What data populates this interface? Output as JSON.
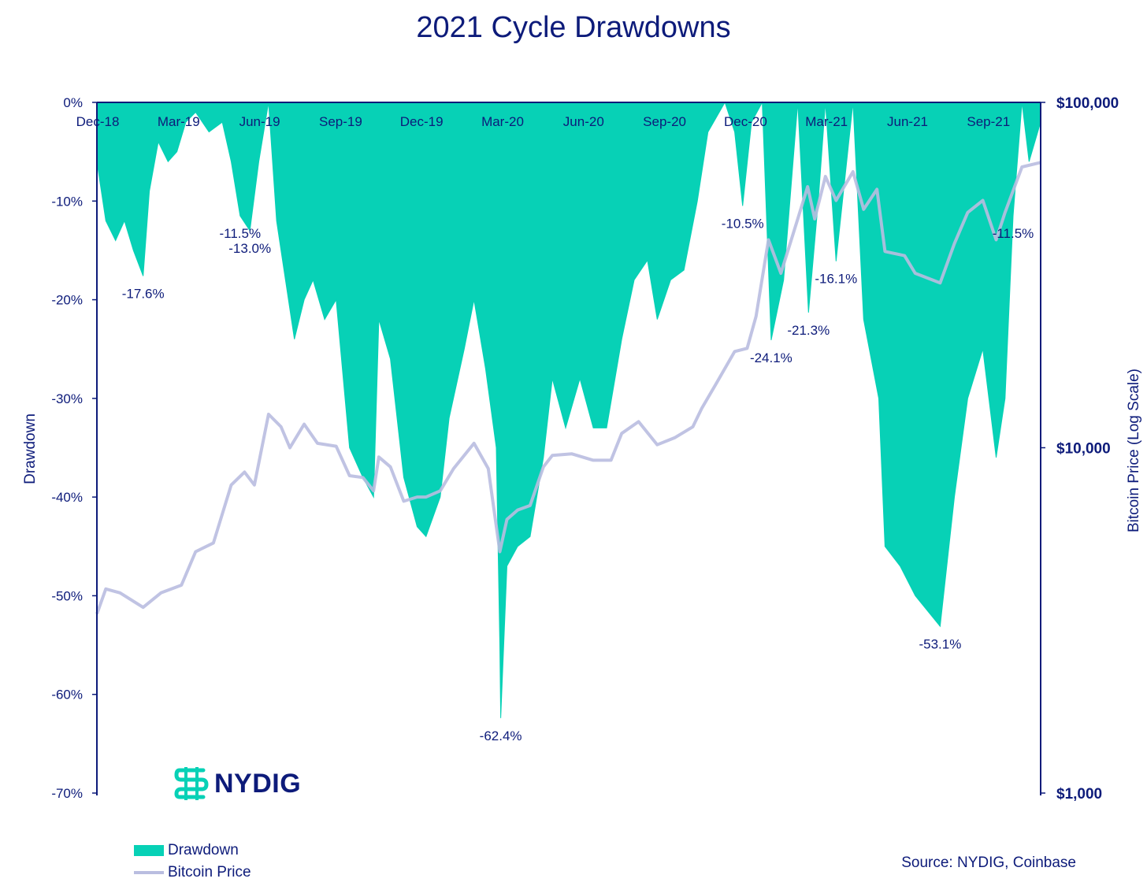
{
  "title": "2021 Cycle Drawdowns",
  "brand": {
    "logo_text": "NYDIG",
    "logo_icon": "nydig-logo-icon"
  },
  "source": "Source: NYDIG, Coinbase",
  "legend": {
    "drawdown": "Drawdown",
    "price": "Bitcoin Price"
  },
  "colors": {
    "drawdown": "#07d1b6",
    "price": "#b9bde0",
    "axis": "#0d1b7a"
  },
  "chart_data": {
    "type": "area",
    "title": "2021 Cycle Drawdowns",
    "ylabel_left": "Drawdown",
    "ylabel_right": "Bitcoin Price (Log Scale)",
    "left_axis": {
      "ylim": [
        -70,
        0
      ],
      "ticks": [
        "0%",
        "-10%",
        "-20%",
        "-30%",
        "-40%",
        "-50%",
        "-60%",
        "-70%"
      ]
    },
    "right_axis": {
      "scale": "log",
      "ylim": [
        1000,
        100000
      ],
      "ticks": [
        "$100,000",
        "$10,000",
        "$1,000"
      ]
    },
    "x_ticks": [
      "Dec-18",
      "Mar-19",
      "Jun-19",
      "Sep-19",
      "Dec-19",
      "Mar-20",
      "Jun-20",
      "Sep-20",
      "Dec-20",
      "Mar-21",
      "Jun-21",
      "Sep-21"
    ],
    "x_range": [
      "2018-12-15",
      "2021-11-10"
    ],
    "legend_position": "bottom-left",
    "series": [
      {
        "name": "Drawdown",
        "type": "area",
        "points": [
          [
            "2018-12-15",
            -6
          ],
          [
            "2018-12-25",
            -12
          ],
          [
            "2019-01-05",
            -14
          ],
          [
            "2019-01-15",
            -12
          ],
          [
            "2019-01-25",
            -15
          ],
          [
            "2019-02-05",
            -17.6
          ],
          [
            "2019-02-12",
            -9
          ],
          [
            "2019-02-22",
            -4
          ],
          [
            "2019-03-05",
            -6
          ],
          [
            "2019-03-15",
            -5
          ],
          [
            "2019-03-25",
            -2
          ],
          [
            "2019-04-05",
            -1
          ],
          [
            "2019-04-20",
            -3
          ],
          [
            "2019-05-05",
            -2
          ],
          [
            "2019-05-15",
            -6
          ],
          [
            "2019-05-25",
            -11.5
          ],
          [
            "2019-06-05",
            -13.0
          ],
          [
            "2019-06-15",
            -6
          ],
          [
            "2019-06-26",
            0
          ],
          [
            "2019-07-05",
            -12
          ],
          [
            "2019-07-15",
            -18
          ],
          [
            "2019-07-25",
            -24
          ],
          [
            "2019-08-05",
            -20
          ],
          [
            "2019-08-15",
            -18
          ],
          [
            "2019-08-28",
            -22
          ],
          [
            "2019-09-10",
            -20
          ],
          [
            "2019-09-25",
            -35
          ],
          [
            "2019-10-10",
            -38
          ],
          [
            "2019-10-22",
            -40
          ],
          [
            "2019-10-28",
            -22
          ],
          [
            "2019-11-10",
            -26
          ],
          [
            "2019-11-25",
            -38
          ],
          [
            "2019-12-10",
            -43
          ],
          [
            "2019-12-20",
            -44
          ],
          [
            "2020-01-05",
            -40
          ],
          [
            "2020-01-15",
            -32
          ],
          [
            "2020-02-01",
            -25
          ],
          [
            "2020-02-12",
            -20
          ],
          [
            "2020-02-25",
            -27
          ],
          [
            "2020-03-08",
            -35
          ],
          [
            "2020-03-12",
            -55
          ],
          [
            "2020-03-13",
            -62.4
          ],
          [
            "2020-03-20",
            -47
          ],
          [
            "2020-04-01",
            -45
          ],
          [
            "2020-04-15",
            -44
          ],
          [
            "2020-04-30",
            -36
          ],
          [
            "2020-05-10",
            -28
          ],
          [
            "2020-05-25",
            -33
          ],
          [
            "2020-06-10",
            -28
          ],
          [
            "2020-06-25",
            -33
          ],
          [
            "2020-07-10",
            -33
          ],
          [
            "2020-07-27",
            -24
          ],
          [
            "2020-08-10",
            -18
          ],
          [
            "2020-08-25",
            -16
          ],
          [
            "2020-09-05",
            -22
          ],
          [
            "2020-09-20",
            -18
          ],
          [
            "2020-10-05",
            -17
          ],
          [
            "2020-10-20",
            -10
          ],
          [
            "2020-11-01",
            -3
          ],
          [
            "2020-11-20",
            0
          ],
          [
            "2020-12-01",
            -3
          ],
          [
            "2020-12-10",
            -10.5
          ],
          [
            "2020-12-20",
            -2
          ],
          [
            "2021-01-01",
            0
          ],
          [
            "2021-01-11",
            -24.1
          ],
          [
            "2021-01-25",
            -18
          ],
          [
            "2021-02-10",
            0
          ],
          [
            "2021-02-22",
            -21.3
          ],
          [
            "2021-03-05",
            -10
          ],
          [
            "2021-03-13",
            0
          ],
          [
            "2021-03-25",
            -16.1
          ],
          [
            "2021-04-13",
            0
          ],
          [
            "2021-04-25",
            -22
          ],
          [
            "2021-05-12",
            -30
          ],
          [
            "2021-05-19",
            -45
          ],
          [
            "2021-06-05",
            -47
          ],
          [
            "2021-06-22",
            -50
          ],
          [
            "2021-07-20",
            -53.1
          ],
          [
            "2021-08-05",
            -40
          ],
          [
            "2021-08-20",
            -30
          ],
          [
            "2021-09-06",
            -25
          ],
          [
            "2021-09-21",
            -36
          ],
          [
            "2021-10-01",
            -30
          ],
          [
            "2021-10-10",
            -11.5
          ],
          [
            "2021-10-20",
            0
          ],
          [
            "2021-10-28",
            -6
          ],
          [
            "2021-11-10",
            -2
          ]
        ]
      },
      {
        "name": "Bitcoin Price",
        "type": "line",
        "points": [
          [
            "2018-12-15",
            3300
          ],
          [
            "2018-12-25",
            3900
          ],
          [
            "2019-01-10",
            3800
          ],
          [
            "2019-02-05",
            3450
          ],
          [
            "2019-02-25",
            3800
          ],
          [
            "2019-03-20",
            4000
          ],
          [
            "2019-04-05",
            5000
          ],
          [
            "2019-04-25",
            5300
          ],
          [
            "2019-05-15",
            7800
          ],
          [
            "2019-05-30",
            8500
          ],
          [
            "2019-06-10",
            7800
          ],
          [
            "2019-06-26",
            12500
          ],
          [
            "2019-07-10",
            11500
          ],
          [
            "2019-07-20",
            10000
          ],
          [
            "2019-08-05",
            11700
          ],
          [
            "2019-08-20",
            10300
          ],
          [
            "2019-09-10",
            10100
          ],
          [
            "2019-09-25",
            8300
          ],
          [
            "2019-10-10",
            8200
          ],
          [
            "2019-10-22",
            7500
          ],
          [
            "2019-10-28",
            9400
          ],
          [
            "2019-11-10",
            8800
          ],
          [
            "2019-11-25",
            7000
          ],
          [
            "2019-12-10",
            7200
          ],
          [
            "2019-12-20",
            7200
          ],
          [
            "2020-01-05",
            7500
          ],
          [
            "2020-01-20",
            8700
          ],
          [
            "2020-02-12",
            10300
          ],
          [
            "2020-02-28",
            8700
          ],
          [
            "2020-03-12",
            5000
          ],
          [
            "2020-03-20",
            6200
          ],
          [
            "2020-04-01",
            6600
          ],
          [
            "2020-04-15",
            6800
          ],
          [
            "2020-04-30",
            8800
          ],
          [
            "2020-05-10",
            9500
          ],
          [
            "2020-06-01",
            9600
          ],
          [
            "2020-06-25",
            9200
          ],
          [
            "2020-07-15",
            9200
          ],
          [
            "2020-07-27",
            11000
          ],
          [
            "2020-08-15",
            11900
          ],
          [
            "2020-09-05",
            10200
          ],
          [
            "2020-09-25",
            10700
          ],
          [
            "2020-10-15",
            11500
          ],
          [
            "2020-10-25",
            13000
          ],
          [
            "2020-11-10",
            15300
          ],
          [
            "2020-12-01",
            19000
          ],
          [
            "2020-12-15",
            19400
          ],
          [
            "2020-12-25",
            24000
          ],
          [
            "2021-01-08",
            40000
          ],
          [
            "2021-01-22",
            32000
          ],
          [
            "2021-02-10",
            46000
          ],
          [
            "2021-02-21",
            57000
          ],
          [
            "2021-03-01",
            46000
          ],
          [
            "2021-03-13",
            61000
          ],
          [
            "2021-03-25",
            52000
          ],
          [
            "2021-04-13",
            63000
          ],
          [
            "2021-04-25",
            49000
          ],
          [
            "2021-05-10",
            56000
          ],
          [
            "2021-05-19",
            37000
          ],
          [
            "2021-06-10",
            36000
          ],
          [
            "2021-06-22",
            32000
          ],
          [
            "2021-07-20",
            30000
          ],
          [
            "2021-08-05",
            39000
          ],
          [
            "2021-08-20",
            48000
          ],
          [
            "2021-09-06",
            52000
          ],
          [
            "2021-09-21",
            40000
          ],
          [
            "2021-10-01",
            48000
          ],
          [
            "2021-10-15",
            60000
          ],
          [
            "2021-10-20",
            65000
          ],
          [
            "2021-11-10",
            67000
          ]
        ]
      }
    ],
    "annotations": [
      {
        "text": "-17.6%",
        "date": "2019-02-05",
        "value": -17.6
      },
      {
        "text": "-11.5%",
        "date": "2019-05-25",
        "value": -11.5
      },
      {
        "text": "-13.0%",
        "date": "2019-06-05",
        "value": -13.0
      },
      {
        "text": "-62.4%",
        "date": "2020-03-13",
        "value": -62.4
      },
      {
        "text": "-10.5%",
        "date": "2020-12-10",
        "value": -10.5
      },
      {
        "text": "-24.1%",
        "date": "2021-01-11",
        "value": -24.1
      },
      {
        "text": "-21.3%",
        "date": "2021-02-22",
        "value": -21.3
      },
      {
        "text": "-16.1%",
        "date": "2021-03-25",
        "value": -16.1
      },
      {
        "text": "-53.1%",
        "date": "2021-07-20",
        "value": -53.1
      },
      {
        "text": "-11.5%",
        "date": "2021-10-10",
        "value": -11.5
      }
    ]
  }
}
